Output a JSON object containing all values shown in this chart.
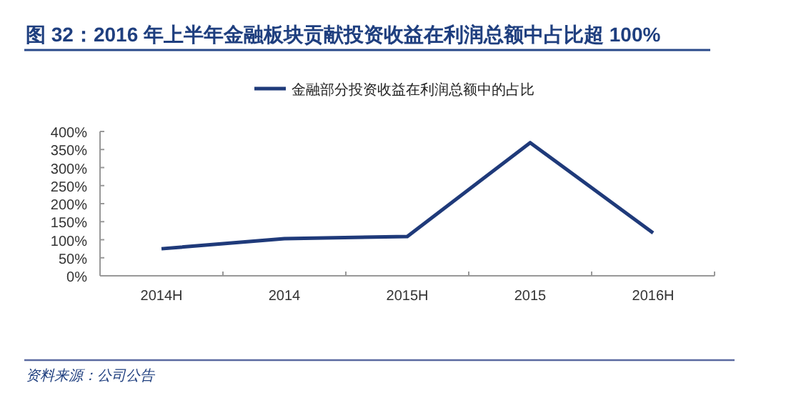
{
  "chart_data": {
    "type": "line",
    "title": "图 32：2016 年上半年金融板块贡献投资收益在利润总额中占比超 100%",
    "categories": [
      "2014H",
      "2014",
      "2015H",
      "2015",
      "2016H"
    ],
    "series": [
      {
        "name": "金融部分投资收益在利润总额中的占比",
        "color": "#1f3a7a",
        "values": [
          75,
          103,
          109,
          369,
          119
        ]
      }
    ],
    "ylim": [
      0,
      400
    ],
    "yticks": [
      {
        "value": 0,
        "label": "0%"
      },
      {
        "value": 50,
        "label": "50%"
      },
      {
        "value": 100,
        "label": "100%"
      },
      {
        "value": 150,
        "label": "150%"
      },
      {
        "value": 200,
        "label": "200%"
      },
      {
        "value": 250,
        "label": "250%"
      },
      {
        "value": 300,
        "label": "300%"
      },
      {
        "value": 350,
        "label": "350%"
      },
      {
        "value": 400,
        "label": "400%"
      }
    ],
    "legend": "top",
    "grid": false,
    "marker": "none",
    "line_style": "solid",
    "annotations": [
      "资料来源：公司公告"
    ]
  }
}
